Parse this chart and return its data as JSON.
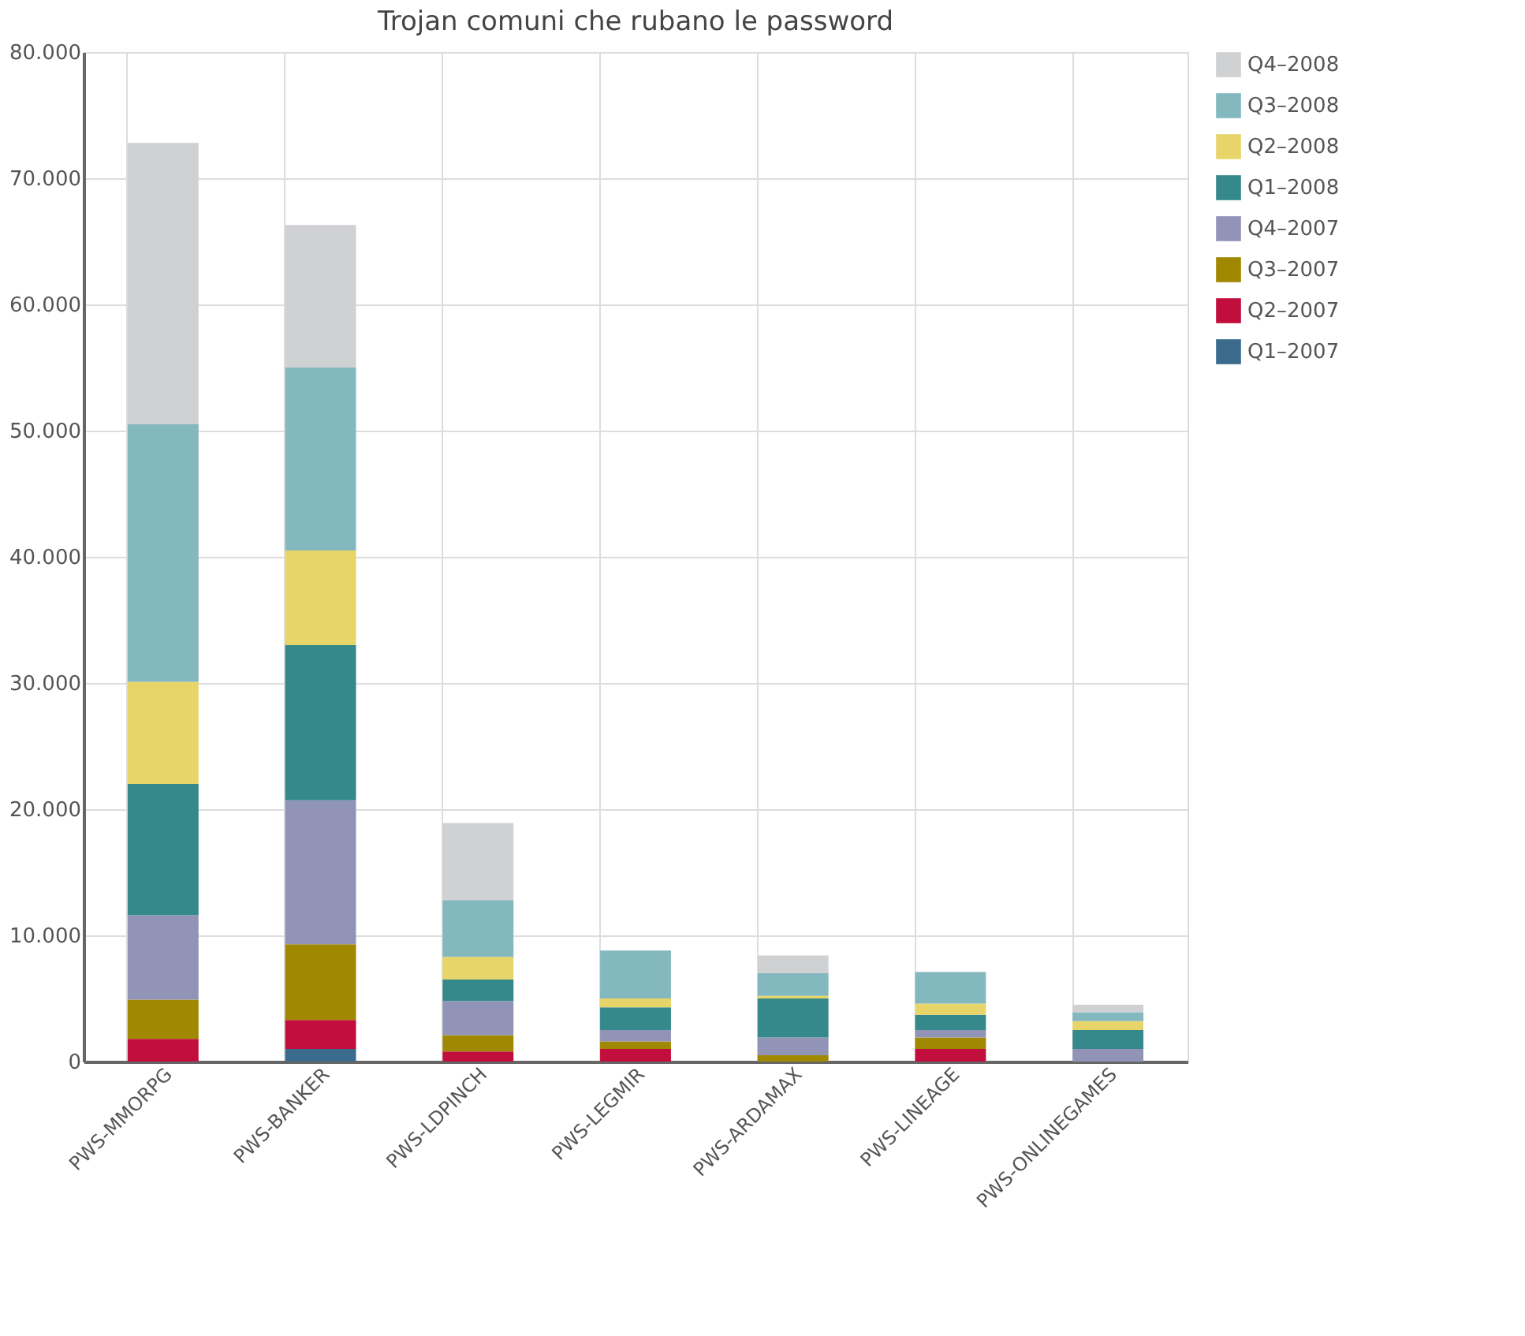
{
  "chart_data": {
    "type": "bar",
    "title": "Trojan comuni che rubano le password",
    "stacked": true,
    "categories": [
      "PWS-MMORPG",
      "PWS-BANKER",
      "PWS-LDPINCH",
      "PWS-LEGMIR",
      "PWS-ARDAMAX",
      "PWS-LINEAGE",
      "PWS-ONLINEGAMES"
    ],
    "series": [
      {
        "name": "Q1–2007",
        "color": "#3a6b8c",
        "values": [
          0,
          1000,
          0,
          0,
          0,
          0,
          0
        ]
      },
      {
        "name": "Q2–2007",
        "color": "#c20e3c",
        "values": [
          1800,
          2300,
          800,
          1000,
          0,
          1000,
          0
        ]
      },
      {
        "name": "Q3–2007",
        "color": "#a08800",
        "values": [
          3100,
          6000,
          1300,
          600,
          500,
          900,
          0
        ]
      },
      {
        "name": "Q4–2007",
        "color": "#9194b7",
        "values": [
          6700,
          11400,
          2700,
          900,
          1400,
          600,
          1000
        ]
      },
      {
        "name": "Q1–2008",
        "color": "#35898b",
        "values": [
          10400,
          12300,
          1700,
          1800,
          3100,
          1200,
          1500
        ]
      },
      {
        "name": "Q2–2008",
        "color": "#e8d56a",
        "values": [
          8100,
          7500,
          1800,
          700,
          200,
          900,
          700
        ]
      },
      {
        "name": "Q3–2008",
        "color": "#83b8bf",
        "values": [
          20400,
          14500,
          4500,
          3800,
          1800,
          2500,
          700
        ]
      },
      {
        "name": "Q4–2008",
        "color": "#d0d1d3",
        "values": [
          22300,
          11300,
          6100,
          0,
          1400,
          0,
          600
        ]
      }
    ],
    "ylim": [
      0,
      80000
    ],
    "yticks": [
      0,
      {
        "value": 10000,
        "label": "10.000"
      },
      {
        "value": 20000,
        "label": "20.000"
      },
      {
        "value": 30000,
        "label": "30.000"
      },
      {
        "value": 40000,
        "label": "40.000"
      },
      {
        "value": 50000,
        "label": "50.000"
      },
      {
        "value": 60000,
        "label": "60.000"
      },
      {
        "value": 70000,
        "label": "70.000"
      },
      {
        "value": 80000,
        "label": "80.000"
      }
    ],
    "grid": true,
    "legend": "right"
  }
}
